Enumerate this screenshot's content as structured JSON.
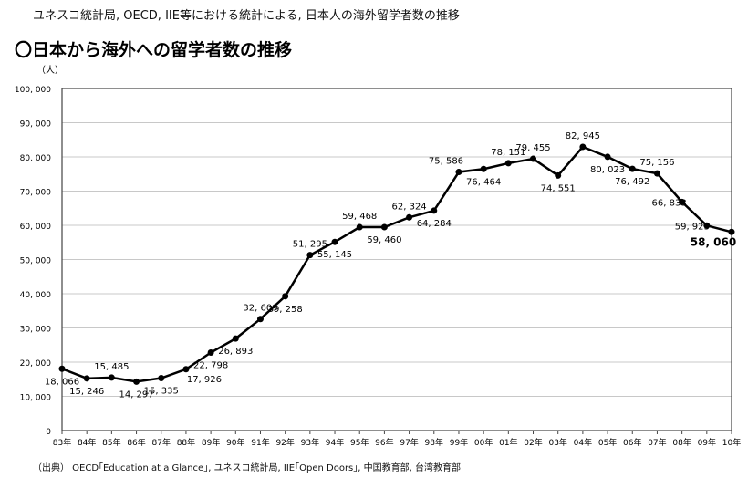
{
  "header_text": "ユネスコ統計局, OECD, IIE等における統計による, 日本人の海外留学者数の推移",
  "source_text": "（出典） OECD｢Education at a Glance｣, ユネスコ統計局, IIE｢Open Doors｣, 中国教育部, 台湾教育部",
  "chart_data": {
    "type": "line",
    "title": "〇日本から海外への留学者数の推移",
    "ylabel": "（人）",
    "xlabel": "",
    "ylim": [
      0,
      100000
    ],
    "yticks": [
      0,
      10000,
      20000,
      30000,
      40000,
      50000,
      60000,
      70000,
      80000,
      90000,
      100000
    ],
    "ytick_labels": [
      "0",
      "10, 000",
      "20, 000",
      "30, 000",
      "40, 000",
      "50, 000",
      "60, 000",
      "70, 000",
      "80, 000",
      "90, 000",
      "100, 000"
    ],
    "grid": true,
    "categories": [
      "83年",
      "84年",
      "85年",
      "86年",
      "87年",
      "88年",
      "89年",
      "90年",
      "91年",
      "92年",
      "93年",
      "94年",
      "95年",
      "96年",
      "97年",
      "98年",
      "99年",
      "00年",
      "01年",
      "02年",
      "03年",
      "04年",
      "05年",
      "06年",
      "07年",
      "08年",
      "09年",
      "10年"
    ],
    "series": [
      {
        "name": "日本人の海外留学者数",
        "color": "#000000",
        "values": [
          18066,
          15246,
          15485,
          14297,
          15335,
          17926,
          22798,
          26893,
          32609,
          39258,
          51295,
          55145,
          59468,
          59460,
          62324,
          64284,
          75586,
          76464,
          78151,
          79455,
          74551,
          82945,
          80023,
          76492,
          75156,
          66833,
          59923,
          58060
        ],
        "data_labels": [
          "18, 066",
          "15, 246",
          "15, 485",
          "14, 297",
          "15, 335",
          "17, 926",
          "22, 798",
          "26, 893",
          "32, 609",
          "39, 258",
          "51, 295",
          "55, 145",
          "59, 468",
          "59, 460",
          "62, 324",
          "64, 284",
          "75, 586",
          "76, 464",
          "78, 151",
          "79, 455",
          "74, 551",
          "82, 945",
          "80, 023",
          "76, 492",
          "75, 156",
          "66, 833",
          "59, 923",
          "58, 060"
        ]
      }
    ]
  }
}
